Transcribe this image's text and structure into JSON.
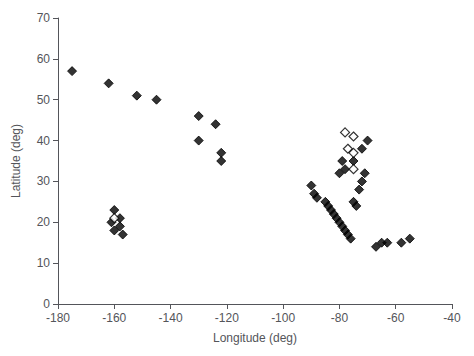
{
  "chart_data": {
    "type": "scatter",
    "xlabel": "Longitude (deg)",
    "ylabel": "Latitude (deg)",
    "xlim": [
      -180,
      -40
    ],
    "ylim": [
      0,
      70
    ],
    "xticks": [
      -180,
      -160,
      -140,
      -120,
      -100,
      -80,
      -60,
      -40
    ],
    "yticks": [
      0,
      10,
      20,
      30,
      40,
      50,
      60,
      70
    ],
    "grid": false,
    "series": [
      {
        "marker": "diamond",
        "color": "black",
        "x": [
          -175,
          -162,
          -152,
          -145,
          -130,
          -124,
          -130,
          -122,
          -122,
          -160,
          -158,
          -161,
          -158,
          -160,
          -157,
          -90,
          -89,
          -88,
          -85,
          -84,
          -83,
          -82,
          -81,
          -80,
          -79,
          -78,
          -77,
          -76,
          -75,
          -74,
          -73,
          -72,
          -71,
          -80,
          -79,
          -78,
          -75,
          -72,
          -70,
          -63,
          -58,
          -65,
          -67,
          -55
        ],
        "values": [
          57,
          54,
          51,
          50,
          46,
          44,
          40,
          37,
          35,
          23,
          21,
          20,
          19,
          18,
          17,
          29,
          27,
          26,
          25,
          24,
          23,
          22,
          21,
          20,
          19,
          18,
          17,
          16,
          25,
          24,
          28,
          30,
          32,
          32,
          35,
          33,
          35,
          38,
          40,
          15,
          15,
          15,
          14,
          16
        ]
      },
      {
        "marker": "open_diamond",
        "color": "black",
        "x": [
          -160,
          -78,
          -75,
          -77,
          -75,
          -75
        ],
        "values": [
          21,
          42,
          41,
          38,
          37,
          33
        ]
      }
    ]
  }
}
